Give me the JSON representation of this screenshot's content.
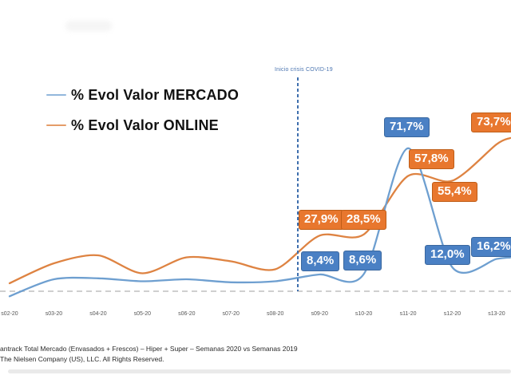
{
  "legend": {
    "items": [
      {
        "label": "% Evol Valor MERCADO",
        "series": "mercado"
      },
      {
        "label": "% Evol Valor ONLINE",
        "series": "online"
      }
    ]
  },
  "colors": {
    "mercado_line": "#6E9FD0",
    "online_line": "#DE8342",
    "mercado_label_bg": "#4A80C4",
    "online_label_bg": "#E8772E",
    "covid_line": "#3F6FAE",
    "annotation_text": "#4A74B0"
  },
  "chart_data": {
    "type": "line",
    "title": "",
    "categories": [
      "s02-20",
      "s03-20",
      "s04-20",
      "s05-20",
      "s06-20",
      "s07-20",
      "s08-20",
      "s09-20",
      "s10-20",
      "s11-20",
      "s12-20",
      "s13-20"
    ],
    "series": [
      {
        "name": "% Evol Valor MERCADO",
        "values": [
          -2.5,
          6.0,
          6.5,
          5.0,
          6.0,
          4.5,
          5.0,
          8.4,
          8.6,
          71.7,
          12.0,
          16.2
        ]
      },
      {
        "name": "% Evol Valor ONLINE",
        "values": [
          4.0,
          14.0,
          18.0,
          9.0,
          17.0,
          15.0,
          11.0,
          27.9,
          28.5,
          57.8,
          55.4,
          73.7
        ]
      }
    ],
    "data_labels": [
      {
        "series": "online",
        "category": "s09-20",
        "text": "27,9%",
        "x": 374,
        "y": 263
      },
      {
        "series": "online",
        "category": "s10-20",
        "text": "28,5%",
        "x": 427,
        "y": 263
      },
      {
        "series": "mercado",
        "category": "s09-20",
        "text": "8,4%",
        "x": 377,
        "y": 315
      },
      {
        "series": "mercado",
        "category": "s10-20",
        "text": "8,6%",
        "x": 430,
        "y": 314
      },
      {
        "series": "mercado",
        "category": "s11-20",
        "text": "71,7%",
        "x": 481,
        "y": 147
      },
      {
        "series": "online",
        "category": "s11-20",
        "text": "57,8%",
        "x": 512,
        "y": 187
      },
      {
        "series": "online",
        "category": "s12-20",
        "text": "55,4%",
        "x": 541,
        "y": 228
      },
      {
        "series": "mercado",
        "category": "s12-20",
        "text": "12,0%",
        "x": 532,
        "y": 307
      },
      {
        "series": "mercado",
        "category": "s13-20",
        "text": "16,2%",
        "x": 590,
        "y": 297
      },
      {
        "series": "online",
        "category": "s13-20",
        "text": "73,7%",
        "x": 590,
        "y": 141
      }
    ],
    "annotation": {
      "text": "Inicio crisis COVID-19",
      "at_x_between": [
        "s08-20",
        "s09-20"
      ]
    },
    "baseline_value": 0,
    "ylim": [
      -5,
      80
    ],
    "grid": false,
    "legend_position": "top-left"
  },
  "footer": {
    "line1": "antrack Total Mercado (Envasados + Frescos) – Hiper + Super – Semanas 2020 vs Semanas 2019",
    "line2": "The Nielsen Company (US), LLC. All Rights Reserved."
  }
}
